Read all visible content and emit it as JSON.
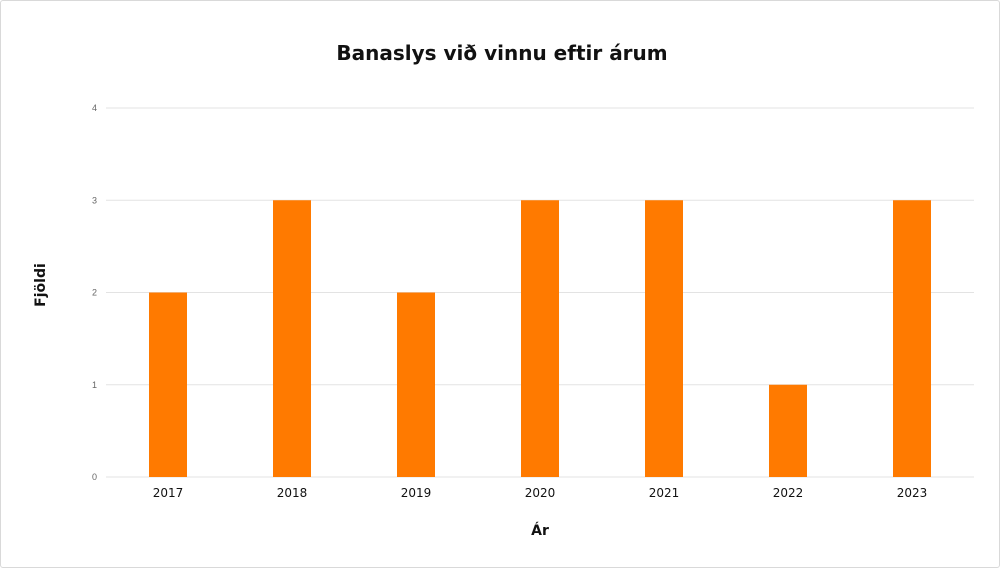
{
  "chart_data": {
    "type": "bar",
    "title": "Banaslys við vinnu eftir árum",
    "xlabel": "Ár",
    "ylabel": "Fjöldi",
    "categories": [
      "2017",
      "2018",
      "2019",
      "2020",
      "2021",
      "2022",
      "2023"
    ],
    "values": [
      2,
      3,
      2,
      3,
      3,
      1,
      3
    ],
    "ylim": [
      0,
      4
    ],
    "yticks": [
      "0",
      "1",
      "2",
      "3",
      "4"
    ],
    "grid": true,
    "legend": "none",
    "bar_color": "#ff7a00"
  }
}
